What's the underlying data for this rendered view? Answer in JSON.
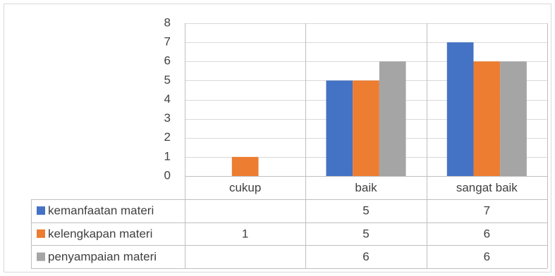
{
  "chart_data": {
    "type": "bar",
    "title": "",
    "xlabel": "",
    "ylabel": "",
    "categories": [
      "cukup",
      "baik",
      "sangat baik"
    ],
    "ylim": [
      0,
      8
    ],
    "yticks": [
      0,
      1,
      2,
      3,
      4,
      5,
      6,
      7,
      8
    ],
    "grid": true,
    "legend": "data-table",
    "series": [
      {
        "name": "kemanfaatan materi",
        "color": "#4472c4",
        "values": [
          null,
          5,
          7
        ]
      },
      {
        "name": "kelengkapan materi",
        "color": "#ed7d31",
        "values": [
          1,
          5,
          6
        ]
      },
      {
        "name": "penyampaian materi",
        "color": "#a5a5a5",
        "values": [
          null,
          6,
          6
        ]
      }
    ]
  }
}
